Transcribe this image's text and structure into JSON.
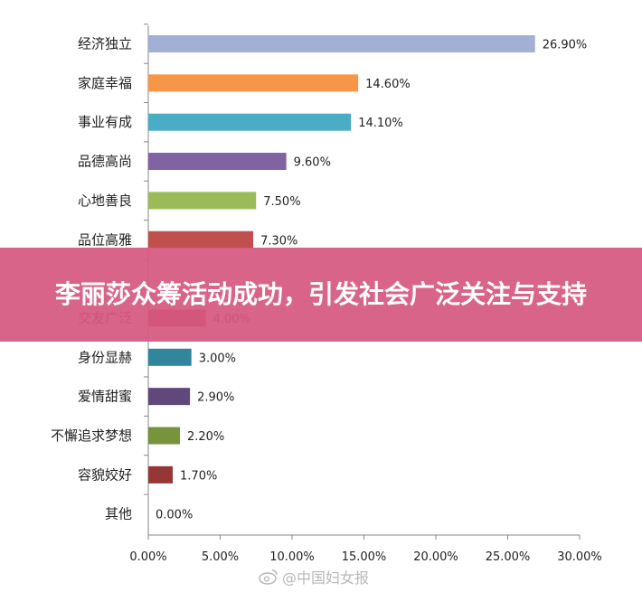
{
  "banner": {
    "headline": "李丽莎众筹活动成功，引发社会广泛关注与支持"
  },
  "watermark": {
    "text": "@中国妇女报",
    "icon": "weibo-icon"
  },
  "chart_data": {
    "type": "bar",
    "orientation": "horizontal",
    "categories": [
      "经济独立",
      "家庭幸福",
      "事业有成",
      "品德高尚",
      "心地善良",
      "品位高雅",
      "",
      "交友广泛",
      "身份显赫",
      "爱情甜蜜",
      "不懈追求梦想",
      "容貌姣好",
      "其他"
    ],
    "values": [
      26.9,
      14.6,
      14.1,
      9.6,
      7.5,
      7.3,
      null,
      4.0,
      3.0,
      2.9,
      2.2,
      1.7,
      0.0
    ],
    "value_labels": [
      "26.90%",
      "14.60%",
      "14.10%",
      "9.60%",
      "7.50%",
      "7.30%",
      "",
      "4.00%",
      "3.00%",
      "2.90%",
      "2.20%",
      "1.70%",
      "0.00%"
    ],
    "colors": [
      "#a3b0d5",
      "#f79646",
      "#4bacc6",
      "#8064a2",
      "#9bbb59",
      "#c0504d",
      "#4f81bd",
      "#c0394b",
      "#31859c",
      "#60497a",
      "#77933c",
      "#953735",
      "#4f81bd"
    ],
    "xlim": [
      0,
      30
    ],
    "xticks": [
      "0.00%",
      "5.00%",
      "10.00%",
      "15.00%",
      "20.00%",
      "25.00%",
      "30.00%"
    ],
    "grid": false,
    "title": "",
    "xlabel": "",
    "ylabel": ""
  }
}
